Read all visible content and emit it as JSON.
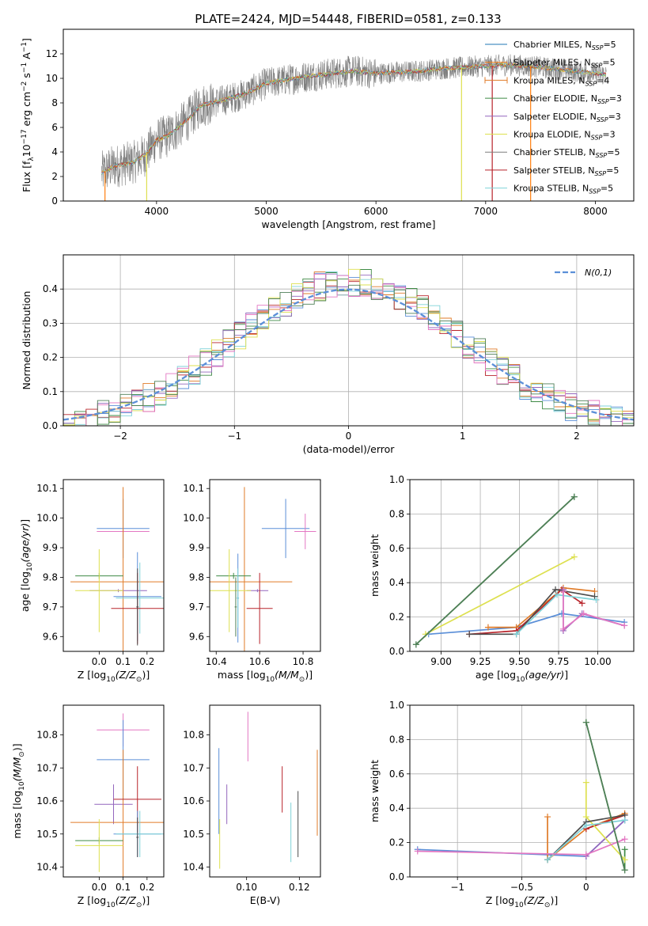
{
  "figure": {
    "title": "PLATE=2424, MJD=54448, FIBERID=0581, z=0.133"
  },
  "chart_data": [
    {
      "type": "line",
      "id": "spectrum",
      "xlabel": "wavelength [Angstrom, rest frame]",
      "ylabel": "Flux [f_λ10^-17 erg cm^-2 s^-1 A^-1]",
      "xlim": [
        3150,
        8350
      ],
      "ylim": [
        0,
        14
      ],
      "xticks": [
        4000,
        5000,
        6000,
        7000,
        8000
      ],
      "yticks": [
        0,
        2,
        4,
        6,
        8,
        10,
        12
      ],
      "grid": false,
      "legend": "right",
      "series": [
        {
          "name": "Chabrier MILES, N_SSP=5",
          "color": "#1f77b4"
        },
        {
          "name": "Salpeter MILES, N_SSP=5",
          "color": "#ff7f0e"
        },
        {
          "name": "Kroupa MILES, N_SSP=4",
          "color": "#e07b28"
        },
        {
          "name": "Chabrier ELODIE, N_SSP=3",
          "color": "#3e8a45"
        },
        {
          "name": "Salpeter ELODIE, N_SSP=3",
          "color": "#9467bd"
        },
        {
          "name": "Kroupa ELODIE, N_SSP=3",
          "color": "#dde04f"
        },
        {
          "name": "Chabrier STELIB, N_SSP=5",
          "color": "#7f7f7f"
        },
        {
          "name": "Salpeter STELIB, N_SSP=5",
          "color": "#b8232a"
        },
        {
          "name": "Kroupa STELIB, N_SSP=5",
          "color": "#7fd2d8"
        }
      ],
      "continuum": {
        "x": [
          3500,
          3600,
          3700,
          3800,
          3900,
          4000,
          4100,
          4200,
          4300,
          4400,
          4600,
          4800,
          5000,
          5200,
          5400,
          5600,
          5800,
          6000,
          6200,
          6400,
          6600,
          6800,
          7000,
          7200,
          7400,
          7600,
          7800,
          8000,
          8100
        ],
        "y": [
          2.3,
          2.8,
          3.0,
          3.2,
          3.8,
          5.0,
          5.3,
          6.0,
          6.8,
          7.8,
          8.2,
          8.7,
          9.6,
          9.9,
          10.2,
          10.4,
          10.6,
          10.4,
          10.5,
          10.6,
          10.8,
          10.9,
          11.0,
          11.1,
          11.0,
          10.8,
          10.6,
          10.4,
          10.3
        ]
      },
      "noise_series_color": "#7f7f7f",
      "spikes": [
        {
          "x": 3530,
          "color": "#ff7f0e"
        },
        {
          "x": 3910,
          "color": "#dde04f"
        },
        {
          "x": 6780,
          "color": "#dde04f"
        },
        {
          "x": 7060,
          "color": "#b8232a"
        },
        {
          "x": 7410,
          "color": "#ff7f0e"
        }
      ]
    },
    {
      "type": "bar",
      "id": "residuals",
      "xlabel": "(data-model)/error",
      "ylabel": "Normed distribution",
      "xlim": [
        -2.5,
        2.5
      ],
      "ylim": [
        0,
        0.5
      ],
      "xticks": [
        -2,
        -1,
        0,
        1,
        2
      ],
      "yticks": [
        0.0,
        0.1,
        0.2,
        0.3,
        0.4
      ],
      "grid": true,
      "legend": "top-right",
      "gaussian": {
        "name": "N(0,1)",
        "color": "#5b8fd8",
        "style": "dashed"
      },
      "hist_colors": [
        "#5b8fd8",
        "#e07b28",
        "#3e8a45",
        "#b8232a",
        "#9467bd",
        "#7fd2d8",
        "#dde04f",
        "#e377c2",
        "#4f7f57"
      ]
    },
    {
      "type": "scatter",
      "id": "age-vs-Z",
      "xlabel": "Z [log10(Z/Z☉)]",
      "ylabel": "age [log10(age/yr)]",
      "xlim": [
        -0.15,
        0.27
      ],
      "ylim": [
        9.55,
        10.13
      ],
      "xticks": [
        0.0,
        0.1,
        0.2
      ],
      "yticks": [
        9.6,
        9.7,
        9.8,
        9.9,
        10.0,
        10.1
      ],
      "grid": false,
      "points": [
        {
          "x": 0.1,
          "y": 9.965,
          "xe": 0.11,
          "ye": 0.1,
          "color": "#5b8fd8"
        },
        {
          "x": 0.1,
          "y": 9.955,
          "xe": 0.11,
          "ye": 0.005,
          "color": "#e377c2"
        },
        {
          "x": 0.1,
          "y": 9.785,
          "xe": 0.22,
          "ye": 0.32,
          "color": "#e07b28"
        },
        {
          "x": 0.0,
          "y": 9.805,
          "xe": 0.1,
          "ye": 0.01,
          "color": "#3e8a45"
        },
        {
          "x": 0.08,
          "y": 9.755,
          "xe": 0.12,
          "ye": 0.005,
          "color": "#9467bd"
        },
        {
          "x": 0.0,
          "y": 9.755,
          "xe": 0.1,
          "ye": 0.14,
          "color": "#dde04f"
        },
        {
          "x": 0.16,
          "y": 9.735,
          "xe": 0.1,
          "ye": 0.15,
          "color": "#5b8fd8"
        },
        {
          "x": 0.17,
          "y": 9.73,
          "xe": 0.1,
          "ye": 0.12,
          "color": "#7fd2d8"
        },
        {
          "x": 0.16,
          "y": 9.695,
          "xe": 0.11,
          "ye": 0.12,
          "color": "#b8232a"
        },
        {
          "x": 0.16,
          "y": 9.7,
          "xe": 0.005,
          "ye": 0.13,
          "color": "#4d4d4d"
        }
      ]
    },
    {
      "type": "scatter",
      "id": "age-vs-mass",
      "xlabel": "mass [log10(M/M☉)]",
      "ylabel": "",
      "xlim": [
        10.37,
        10.88
      ],
      "ylim": [
        9.55,
        10.13
      ],
      "xticks": [
        10.4,
        10.6,
        10.8
      ],
      "yticks": [
        9.6,
        9.7,
        9.8,
        9.9,
        10.0,
        10.1
      ],
      "grid": false,
      "points": [
        {
          "x": 10.72,
          "y": 9.965,
          "xe": 0.11,
          "ye": 0.1,
          "color": "#5b8fd8"
        },
        {
          "x": 10.81,
          "y": 9.955,
          "xe": 0.05,
          "ye": 0.06,
          "color": "#e377c2"
        },
        {
          "x": 10.53,
          "y": 9.785,
          "xe": 0.22,
          "ye": 0.32,
          "color": "#e07b28"
        },
        {
          "x": 10.48,
          "y": 9.805,
          "xe": 0.08,
          "ye": 0.01,
          "color": "#3e8a45"
        },
        {
          "x": 10.59,
          "y": 9.755,
          "xe": 0.05,
          "ye": 0.005,
          "color": "#9467bd"
        },
        {
          "x": 10.46,
          "y": 9.755,
          "xe": 0.1,
          "ye": 0.14,
          "color": "#dde04f"
        },
        {
          "x": 10.5,
          "y": 9.73,
          "xe": 0.005,
          "ye": 0.15,
          "color": "#5b8fd8"
        },
        {
          "x": 10.5,
          "y": 9.73,
          "xe": 0.005,
          "ye": 0.1,
          "color": "#7fd2d8"
        },
        {
          "x": 10.6,
          "y": 9.695,
          "xe": 0.06,
          "ye": 0.12,
          "color": "#b8232a"
        },
        {
          "x": 10.49,
          "y": 9.7,
          "xe": 0.005,
          "ye": 0.1,
          "color": "#4f7f57"
        }
      ]
    },
    {
      "type": "line",
      "id": "mass-weight-vs-age",
      "xlabel": "age [log10(age/yr)]",
      "ylabel": "mass weight",
      "xlim": [
        8.8,
        10.23
      ],
      "ylim": [
        0.0,
        1.0
      ],
      "xticks": [
        9.0,
        9.25,
        9.5,
        9.75,
        10.0
      ],
      "yticks": [
        0.0,
        0.2,
        0.4,
        0.6,
        0.8,
        1.0
      ],
      "grid": true,
      "series": [
        {
          "color": "#5b8fd8",
          "x": [
            8.92,
            9.48,
            9.77,
            10.17
          ],
          "y": [
            0.1,
            0.14,
            0.22,
            0.17
          ]
        },
        {
          "color": "#e07b28",
          "x": [
            9.3,
            9.48,
            9.78,
            9.98
          ],
          "y": [
            0.14,
            0.14,
            0.37,
            0.35
          ]
        },
        {
          "color": "#3e8a45",
          "x": [
            8.84,
            9.85
          ],
          "y": [
            0.04,
            0.9
          ]
        },
        {
          "color": "#b8232a",
          "x": [
            9.18,
            9.48,
            9.77,
            9.9
          ],
          "y": [
            0.1,
            0.12,
            0.36,
            0.28
          ]
        },
        {
          "color": "#9467bd",
          "x": [
            9.78,
            9.78,
            9.9,
            10.17
          ],
          "y": [
            0.36,
            0.12,
            0.22,
            0.15
          ]
        },
        {
          "color": "#dde04f",
          "x": [
            8.9,
            9.85
          ],
          "y": [
            0.1,
            0.55
          ]
        },
        {
          "color": "#4d4d4d",
          "x": [
            9.18,
            9.48,
            9.73,
            9.98
          ],
          "y": [
            0.1,
            0.1,
            0.36,
            0.32
          ]
        },
        {
          "color": "#7fd2d8",
          "x": [
            9.48,
            9.74,
            9.99
          ],
          "y": [
            0.1,
            0.33,
            0.3
          ]
        },
        {
          "color": "#e377c2",
          "x": [
            9.78,
            9.78,
            9.91,
            10.17
          ],
          "y": [
            0.35,
            0.13,
            0.22,
            0.15
          ]
        },
        {
          "color": "#4f7f57",
          "x": [
            8.84,
            9.85
          ],
          "y": [
            0.04,
            0.9
          ]
        }
      ]
    },
    {
      "type": "scatter",
      "id": "mass-vs-Z",
      "xlabel": "Z [log10(Z/Z☉)]",
      "ylabel": "mass [log10(M/M☉)]",
      "xlim": [
        -0.15,
        0.27
      ],
      "ylim": [
        10.37,
        10.89
      ],
      "xticks": [
        0.0,
        0.1,
        0.2
      ],
      "yticks": [
        10.4,
        10.5,
        10.6,
        10.7,
        10.8
      ],
      "grid": false,
      "points": [
        {
          "x": 0.1,
          "y": 10.815,
          "xe": 0.11,
          "ye": 0.05,
          "color": "#e377c2"
        },
        {
          "x": 0.1,
          "y": 10.725,
          "xe": 0.11,
          "ye": 0.12,
          "color": "#5b8fd8"
        },
        {
          "x": 0.06,
          "y": 10.59,
          "xe": 0.08,
          "ye": 0.06,
          "color": "#9467bd"
        },
        {
          "x": 0.1,
          "y": 10.535,
          "xe": 0.22,
          "ye": 0.22,
          "color": "#e07b28"
        },
        {
          "x": 0.16,
          "y": 10.605,
          "xe": 0.1,
          "ye": 0.1,
          "color": "#b8232a"
        },
        {
          "x": 0.16,
          "y": 10.5,
          "xe": 0.1,
          "ye": 0.07,
          "color": "#5b8fd8"
        },
        {
          "x": 0.17,
          "y": 10.5,
          "xe": 0.1,
          "ye": 0.07,
          "color": "#7fd2d8"
        },
        {
          "x": 0.0,
          "y": 10.48,
          "xe": 0.1,
          "ye": 0.01,
          "color": "#3e8a45"
        },
        {
          "x": 0.0,
          "y": 10.465,
          "xe": 0.1,
          "ye": 0.08,
          "color": "#dde04f"
        },
        {
          "x": 0.16,
          "y": 10.49,
          "xe": 0.005,
          "ye": 0.06,
          "color": "#4d4d4d"
        }
      ]
    },
    {
      "type": "scatter",
      "id": "mass-vs-ebv",
      "xlabel": "E(B-V)",
      "ylabel": "",
      "xlim": [
        0.086,
        0.128
      ],
      "ylim": [
        10.37,
        10.89
      ],
      "xticks": [
        0.1,
        0.12
      ],
      "yticks": [
        10.4,
        10.5,
        10.6,
        10.7,
        10.8
      ],
      "grid": false,
      "points": [
        {
          "x": 0.0895,
          "y": 10.63,
          "ye": 0.13,
          "color": "#5b8fd8"
        },
        {
          "x": 0.0925,
          "y": 10.59,
          "ye": 0.06,
          "color": "#9467bd"
        },
        {
          "x": 0.0898,
          "y": 10.47,
          "ye": 0.075,
          "color": "#dde04f"
        },
        {
          "x": 0.1005,
          "y": 10.795,
          "ye": 0.075,
          "color": "#e377c2"
        },
        {
          "x": 0.1135,
          "y": 10.635,
          "ye": 0.07,
          "color": "#b8232a"
        },
        {
          "x": 0.1168,
          "y": 10.505,
          "ye": 0.09,
          "color": "#7fd2d8"
        },
        {
          "x": 0.1195,
          "y": 10.53,
          "ye": 0.1,
          "color": "#4d4d4d"
        },
        {
          "x": 0.1268,
          "y": 10.625,
          "ye": 0.13,
          "color": "#e07b28"
        }
      ]
    },
    {
      "type": "line",
      "id": "mass-weight-vs-Z",
      "xlabel": "Z [log10(Z/Z☉)]",
      "ylabel": "mass weight",
      "xlim": [
        -1.37,
        0.37
      ],
      "ylim": [
        0.0,
        1.0
      ],
      "xticks": [
        -1.0,
        -0.5,
        0.0
      ],
      "yticks": [
        0.0,
        0.2,
        0.4,
        0.6,
        0.8,
        1.0
      ],
      "grid": true,
      "series": [
        {
          "color": "#5b8fd8",
          "x": [
            -1.31,
            0.0,
            0.3
          ],
          "y": [
            0.16,
            0.12,
            0.33
          ]
        },
        {
          "color": "#e07b28",
          "x": [
            -0.3,
            -0.3,
            0.0,
            0.3
          ],
          "y": [
            0.35,
            0.1,
            0.28,
            0.37
          ]
        },
        {
          "color": "#3e8a45",
          "x": [
            0.0,
            0.3,
            0.3
          ],
          "y": [
            0.9,
            0.04,
            0.16
          ]
        },
        {
          "color": "#b8232a",
          "x": [
            0.0,
            0.3
          ],
          "y": [
            0.28,
            0.36
          ]
        },
        {
          "color": "#9467bd",
          "x": [
            0.0,
            0.3
          ],
          "y": [
            0.12,
            0.33
          ]
        },
        {
          "color": "#dde04f",
          "x": [
            0.0,
            0.0,
            0.3
          ],
          "y": [
            0.55,
            0.35,
            0.1
          ]
        },
        {
          "color": "#4d4d4d",
          "x": [
            -0.3,
            0.0,
            0.3
          ],
          "y": [
            0.1,
            0.32,
            0.36
          ]
        },
        {
          "color": "#7fd2d8",
          "x": [
            -0.3,
            0.0,
            0.3
          ],
          "y": [
            0.1,
            0.3,
            0.33
          ]
        },
        {
          "color": "#e377c2",
          "x": [
            -1.31,
            0.0,
            0.3
          ],
          "y": [
            0.15,
            0.13,
            0.22
          ]
        },
        {
          "color": "#4f7f57",
          "x": [
            0.0,
            0.3
          ],
          "y": [
            0.9,
            0.04
          ]
        }
      ]
    }
  ]
}
